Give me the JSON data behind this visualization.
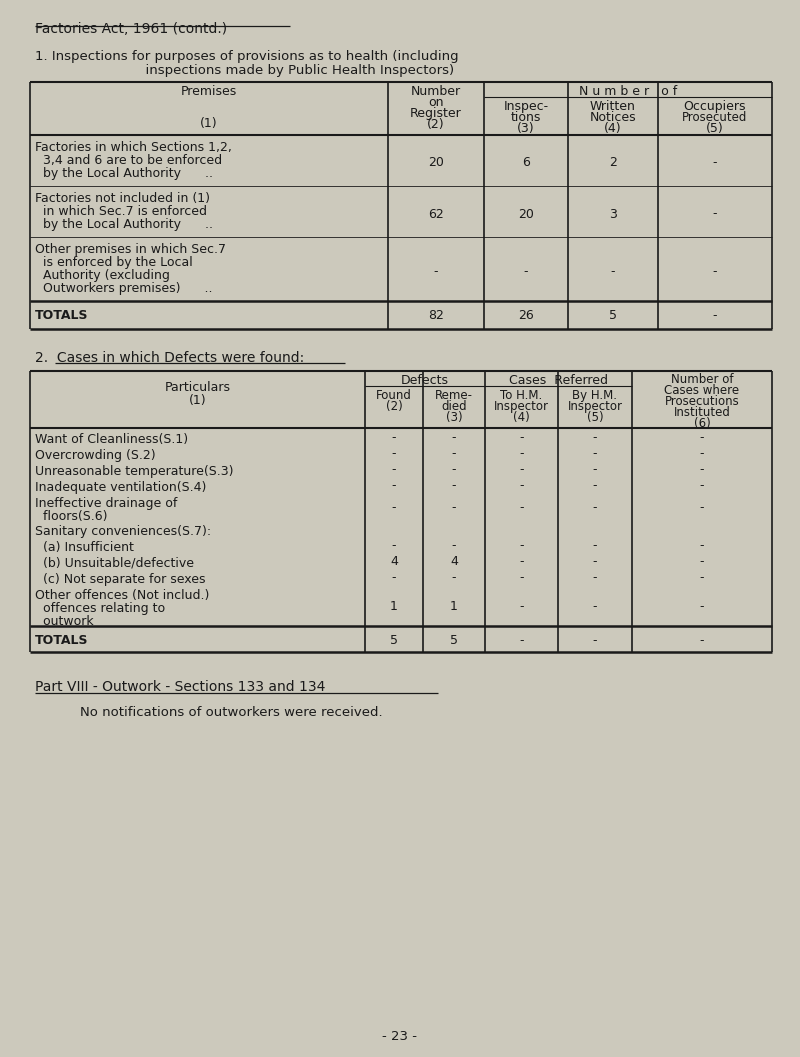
{
  "bg_color": "#ccc9bc",
  "title": "Factories Act, 1961 (contd.)",
  "section1_line1": "1. Inspections for purposes of provisions as to health (including",
  "section1_line2": "                          inspections made by Public Health Inspectors)",
  "table1_number_of_header": "N u m b e r   o f",
  "table1_rows": [
    {
      "label_lines": [
        "Factories in which Sections 1,2,",
        "  3,4 and 6 are to be enforced",
        "  by the Local Authority      .."
      ],
      "cols": [
        "20",
        "6",
        "2",
        "-"
      ]
    },
    {
      "label_lines": [
        "Factories not included in (1)",
        "  in which Sec.7 is enforced",
        "  by the Local Authority      .."
      ],
      "cols": [
        "62",
        "20",
        "3",
        "-"
      ]
    },
    {
      "label_lines": [
        "Other premises in which Sec.7",
        "  is enforced by the Local",
        "  Authority (excluding",
        "  Outworkers premises)      .."
      ],
      "cols": [
        "-",
        "-",
        "-",
        "-"
      ]
    }
  ],
  "table1_totals": [
    "82",
    "26",
    "5",
    "-"
  ],
  "section2_heading": "2.  Cases in which Defects were found:",
  "table2_rows": [
    {
      "label_lines": [
        "Want of Cleanliness(S.1)"
      ],
      "cols": [
        "-",
        "-",
        "-",
        "-",
        "-"
      ]
    },
    {
      "label_lines": [
        "Overcrowding (S.2)"
      ],
      "cols": [
        "-",
        "-",
        "-",
        "-",
        "-"
      ]
    },
    {
      "label_lines": [
        "Unreasonable temperature(S.3)"
      ],
      "cols": [
        "-",
        "-",
        "-",
        "-",
        "-"
      ]
    },
    {
      "label_lines": [
        "Inadequate ventilation(S.4)"
      ],
      "cols": [
        "-",
        "-",
        "-",
        "-",
        "-"
      ]
    },
    {
      "label_lines": [
        "Ineffective drainage of",
        "  floors(S.6)"
      ],
      "cols": [
        "-",
        "-",
        "-",
        "-",
        "-"
      ]
    },
    {
      "label_lines": [
        "Sanitary conveniences(S.7):"
      ],
      "cols": [
        "",
        "",
        "",
        "",
        ""
      ]
    },
    {
      "label_lines": [
        "  (a) Insufficient"
      ],
      "cols": [
        "-",
        "-",
        "-",
        "-",
        "-"
      ]
    },
    {
      "label_lines": [
        "  (b) Unsuitable/defective"
      ],
      "cols": [
        "4",
        "4",
        "-",
        "-",
        "-"
      ]
    },
    {
      "label_lines": [
        "  (c) Not separate for sexes"
      ],
      "cols": [
        "-",
        "-",
        "-",
        "-",
        "-"
      ]
    },
    {
      "label_lines": [
        "Other offences (Not includ.)",
        "  offences relating to",
        "  outwork"
      ],
      "cols": [
        "1",
        "1",
        "-",
        "-",
        "-"
      ]
    }
  ],
  "table2_totals": [
    "5",
    "5",
    "-",
    "-",
    "-"
  ],
  "part8_heading": "Part VIII - Outwork - Sections 133 and 134",
  "part8_text": "No notifications of outworkers were received.",
  "page_number": "- 23 -"
}
